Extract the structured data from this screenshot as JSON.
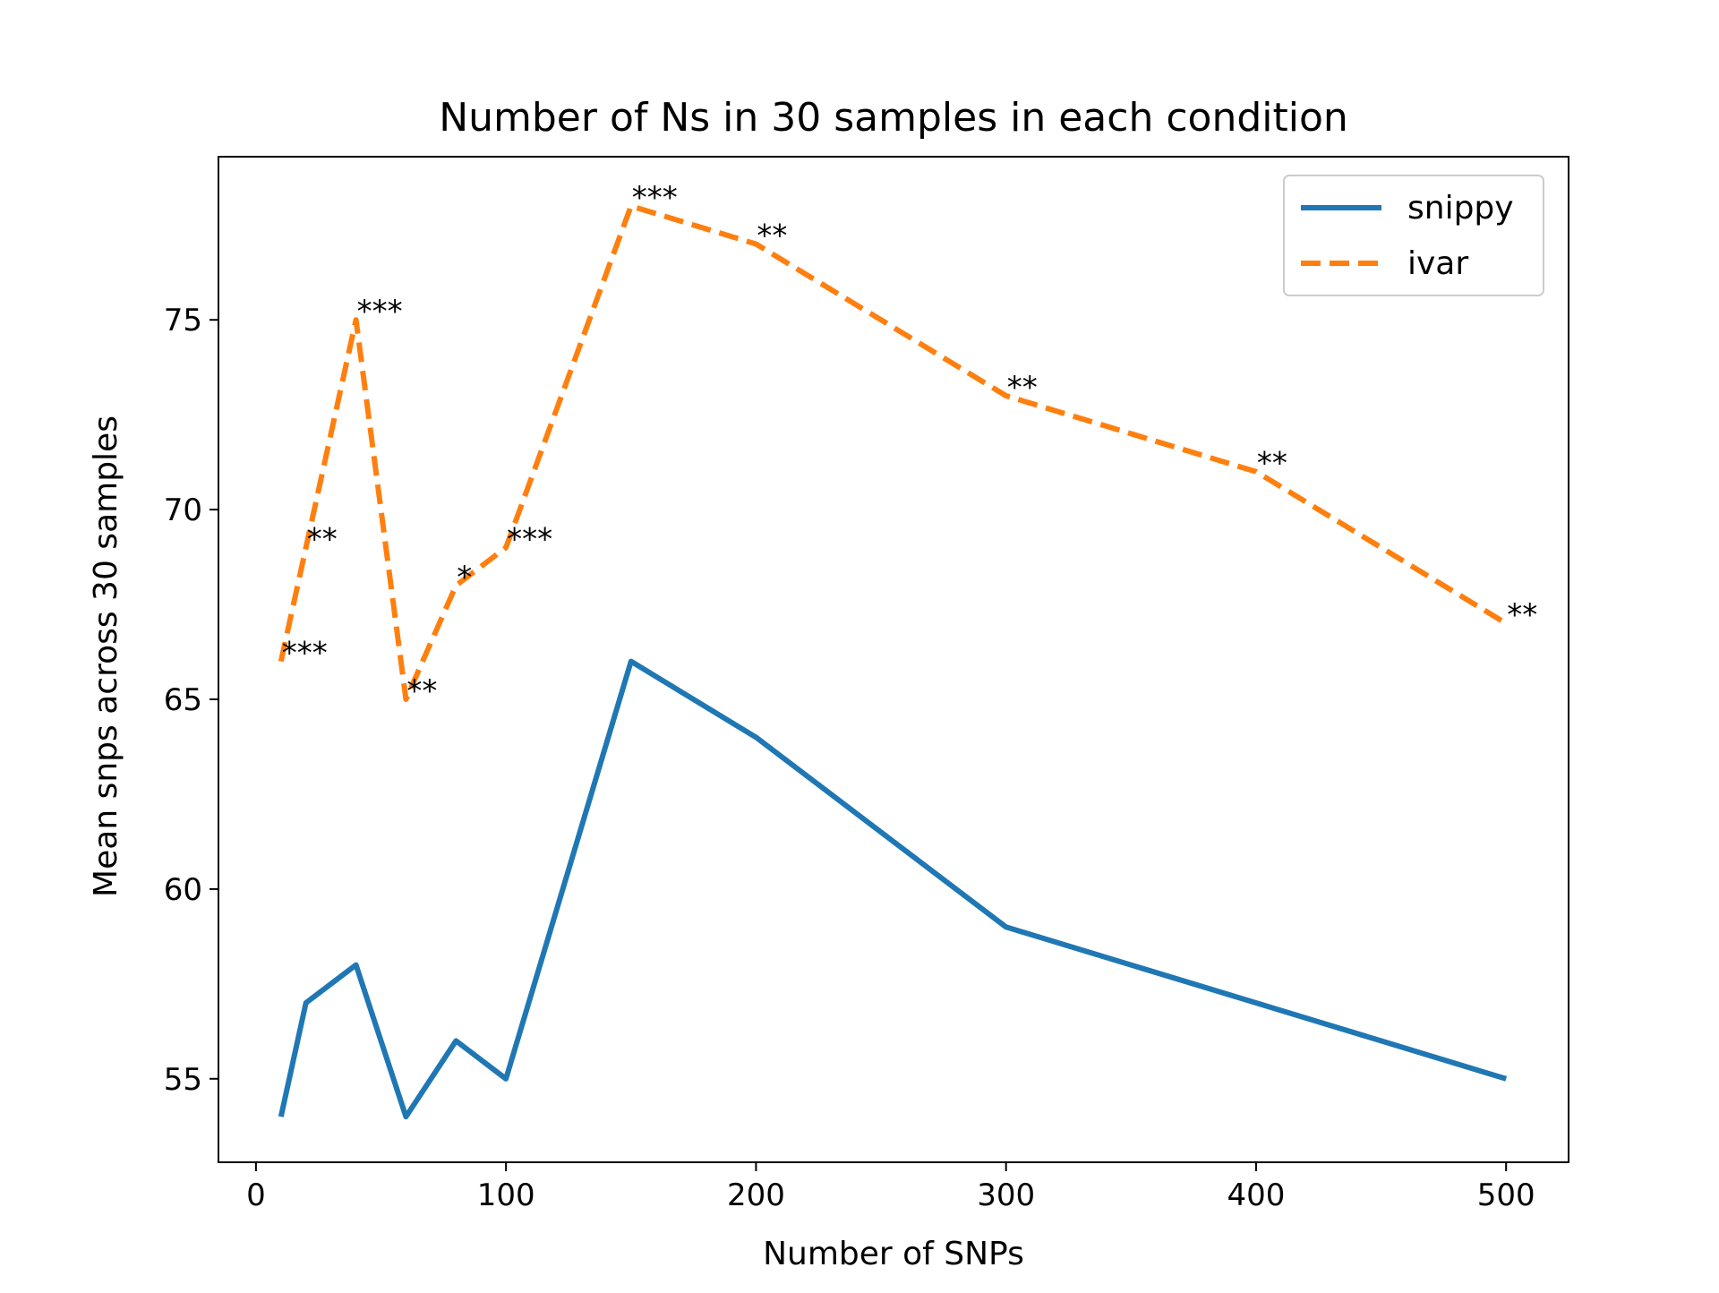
{
  "chart_data": {
    "type": "line",
    "title": "Number of Ns in 30 samples in each condition",
    "xlabel": "Number of SNPs",
    "ylabel": "Mean snps across 30 samples",
    "xlim": [
      -15,
      525
    ],
    "ylim": [
      52.8,
      79.3
    ],
    "x": [
      10,
      20,
      40,
      60,
      80,
      100,
      150,
      200,
      300,
      400,
      500
    ],
    "xticks": [
      0,
      100,
      200,
      300,
      400,
      500
    ],
    "xtick_labels": [
      "0",
      "100",
      "200",
      "300",
      "400",
      "500"
    ],
    "yticks": [
      55,
      60,
      65,
      70,
      75
    ],
    "ytick_labels": [
      "55",
      "60",
      "65",
      "70",
      "75"
    ],
    "grid": false,
    "legend_position": "top-right",
    "series": [
      {
        "name": "snippy",
        "color": "#1f77b4",
        "linestyle": "solid",
        "values": [
          54,
          57,
          58,
          54,
          56,
          55,
          66,
          64,
          59,
          57,
          55
        ]
      },
      {
        "name": "ivar",
        "color": "#ff7f0e",
        "linestyle": "dashed",
        "values": [
          66,
          69,
          75,
          65,
          68,
          69,
          78,
          77,
          73,
          71,
          67
        ]
      }
    ],
    "annotations": [
      {
        "x": 10,
        "y": 66,
        "text": "***"
      },
      {
        "x": 20,
        "y": 69,
        "text": "**"
      },
      {
        "x": 40,
        "y": 75,
        "text": "***"
      },
      {
        "x": 60,
        "y": 65,
        "text": "**"
      },
      {
        "x": 80,
        "y": 68,
        "text": "*"
      },
      {
        "x": 100,
        "y": 69,
        "text": "***"
      },
      {
        "x": 150,
        "y": 78,
        "text": "***"
      },
      {
        "x": 200,
        "y": 77,
        "text": "**"
      },
      {
        "x": 300,
        "y": 73,
        "text": "**"
      },
      {
        "x": 400,
        "y": 71,
        "text": "**"
      },
      {
        "x": 500,
        "y": 67,
        "text": "**"
      }
    ]
  }
}
